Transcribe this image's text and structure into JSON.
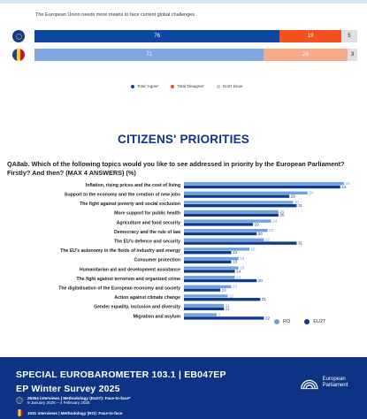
{
  "stacked": {
    "title": "The European Union needs more means to face current global challenges",
    "rows": [
      {
        "flag": "eu-flag-icon",
        "segments": [
          {
            "value": 76,
            "label": "76",
            "color": "#0e47a1"
          },
          {
            "value": 19,
            "label": "19",
            "color": "#f4511e"
          },
          {
            "value": 5,
            "label": "5",
            "color": "#e0e0e0"
          }
        ]
      },
      {
        "flag": "ro-flag-icon",
        "segments": [
          {
            "value": 71,
            "label": "71",
            "color": "#7fa7e2"
          },
          {
            "value": 26,
            "label": "26",
            "color": "#f7ab8a"
          },
          {
            "value": 3,
            "label": "3",
            "color": "#e0e0e0"
          }
        ]
      }
    ],
    "legend": [
      {
        "label": "Total 'Agree'",
        "color": "#0e47a1"
      },
      {
        "label": "Total 'Disagree'",
        "color": "#f4511e"
      },
      {
        "label": "Don't know",
        "color": "#c8c8c8"
      }
    ]
  },
  "section_title": "CITIZENS' PRIORITIES",
  "question": "QA8ab. Which of the following topics would you like to see addressed in priority by the European Parliament? Firstly? And then? (MAX 4 ANSWERS) (%)",
  "chart_data": {
    "type": "bar",
    "orientation": "horizontal",
    "categories": [
      "Inflation, rising prices and the cost of living",
      "Support to the economy and the creation of new jobs",
      "The fight against poverty and social exclusion",
      "More support for public health",
      "Agriculture and food security",
      "Democracy and the rule of law",
      "The EU's defence and security",
      "The EU's autonomy in the fields of industry and energy",
      "Consumer protection",
      "Humanitarian aid and development assistance",
      "The fight against terrorism and organized crime",
      "The digitalisation of the European economy and society",
      "Action against climate change",
      "Gender equality, inclusion and diversity",
      "Migration and asylum"
    ],
    "series": [
      {
        "name": "RO",
        "color": "#6fa0df",
        "values": [
          44,
          34,
          30,
          26,
          24,
          23,
          22,
          18,
          15,
          15,
          14,
          13,
          12,
          11,
          9
        ]
      },
      {
        "name": "EU27",
        "color": "#0e3b8f",
        "values": [
          43,
          29,
          31,
          26,
          19,
          20,
          31,
          13,
          13,
          14,
          20,
          10,
          21,
          11,
          22
        ]
      }
    ],
    "xlim": [
      0,
      45
    ],
    "legend_position": "bottom-right"
  },
  "footer": {
    "line1": "SPECIAL EUROBAROMETER 103.1 | EB047EP",
    "line2": "EP Winter Survey 2025",
    "eu_line": "26354 interviews | Methodology (EU27): Face-to-face*",
    "eu_dates": "9 January 2025 – 4 February 2025",
    "ro_line": "1031 interviews | Methodology (RO): Face-to-face",
    "logo_text": "European Parliament"
  }
}
